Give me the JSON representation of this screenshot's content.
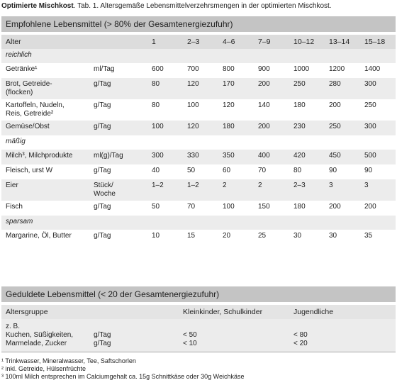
{
  "caption": {
    "bold": "Optimierte Mischkost",
    "text": ". Tab. 1. Altersgemäße Lebensmittelverzehrsmengen in der optimierten Mischkost."
  },
  "table1": {
    "title": "Empfohlene Lebensmittel (> 80% der Gesamtenergiezufuhr)",
    "header_label": "Alter",
    "ages": [
      "1",
      "2–3",
      "4–6",
      "7–9",
      "10–12",
      "13–14",
      "15–18"
    ],
    "rows": [
      {
        "group": "reichlich"
      },
      {
        "label": [
          "Getränke¹"
        ],
        "unit": [
          "ml/Tag"
        ],
        "values": [
          "600",
          "700",
          "800",
          "900",
          "1000",
          "1200",
          "1400"
        ]
      },
      {
        "label": [
          "Brot, Getreide-",
          "(flocken)"
        ],
        "unit": [
          "g/Tag"
        ],
        "values": [
          "80",
          "120",
          "170",
          "200",
          "250",
          "280",
          "300"
        ]
      },
      {
        "label": [
          "Kartoffeln, Nudeln,",
          "Reis, Getreide²"
        ],
        "unit": [
          "g/Tag"
        ],
        "values": [
          "80",
          "100",
          "120",
          "140",
          "180",
          "200",
          "250"
        ]
      },
      {
        "label": [
          "Gemüse/Obst"
        ],
        "unit": [
          "g/Tag"
        ],
        "values": [
          "100",
          "120",
          "180",
          "200",
          "230",
          "250",
          "300"
        ]
      },
      {
        "group": "mäßig"
      },
      {
        "label": [
          "Milch³, Milchprodukte"
        ],
        "unit": [
          "ml(g)/Tag"
        ],
        "values": [
          "300",
          "330",
          "350",
          "400",
          "420",
          "450",
          "500"
        ]
      },
      {
        "label": [
          "Fleisch,    urst W"
        ],
        "unit": [
          "g/Tag"
        ],
        "values": [
          "40",
          "50",
          "60",
          "70",
          "80",
          "90",
          "90"
        ]
      },
      {
        "label": [
          "Eier"
        ],
        "unit": [
          "Stück/",
          "Woche"
        ],
        "values": [
          "1–2",
          "1–2",
          "2",
          "2",
          "2–3",
          "3",
          "3"
        ]
      },
      {
        "label": [
          "Fisch"
        ],
        "unit": [
          "g/Tag"
        ],
        "values": [
          "50",
          "70",
          "100",
          "150",
          "180",
          "200",
          "200"
        ]
      },
      {
        "group": "sparsam"
      },
      {
        "label": [
          "Margarine, Öl, Butter"
        ],
        "unit": [
          "g/Tag"
        ],
        "values": [
          "10",
          "15",
          "20",
          "25",
          "30",
          "30",
          "35"
        ]
      }
    ]
  },
  "table2": {
    "title": "Geduldete Lebensmittel (< 20 der Gesamtenergiezufuhr)",
    "header": [
      "Altersgruppe",
      "Kleinkinder, Schulkinder",
      "Jugendliche"
    ],
    "row": {
      "label": [
        "z. B.",
        "Kuchen, Süßigkeiten,",
        "Marmelade, Zucker"
      ],
      "unit": [
        "g/Tag",
        "g/Tag"
      ],
      "kids": [
        "< 50",
        "< 10"
      ],
      "teens": [
        "< 80",
        "< 20"
      ]
    }
  },
  "footnotes": [
    "¹ Trinkwasser, Mineralwasser, Tee, Saftschorlen",
    "² inkl. Getreide, Hülsenfrüchte",
    "³ 100ml Milch entsprechen im Calciumgehalt ca. 15g Schnittkäse oder 30g Weichkäse"
  ]
}
